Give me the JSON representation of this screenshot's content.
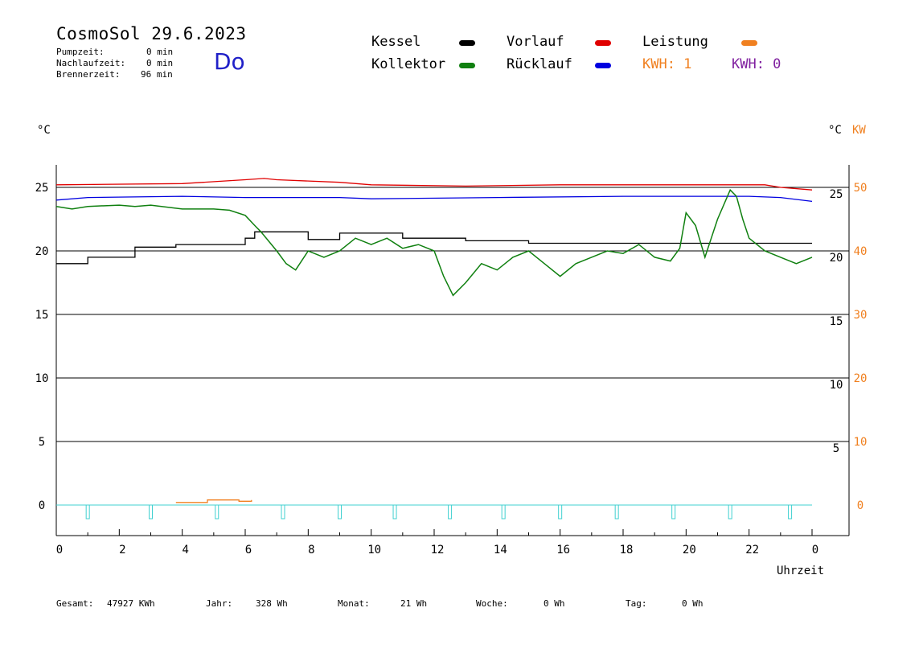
{
  "header": {
    "title": "CosmoSol 29.6.2023",
    "day": "Do",
    "stats": [
      {
        "label": "Pumpzeit:",
        "value": "0 min"
      },
      {
        "label": "Nachlaufzeit:",
        "value": "0 min"
      },
      {
        "label": "Brennerzeit:",
        "value": "96 min"
      }
    ]
  },
  "legend": {
    "kessel": "Kessel",
    "kollektor": "Kollektor",
    "vorlauf": "Vorlauf",
    "ruecklauf": "Rücklauf",
    "leistung": "Leistung",
    "kwh1": "KWH: 1",
    "kwh2": "KWH: 0"
  },
  "colors": {
    "kessel": "#000000",
    "kollektor": "#108010",
    "vorlauf": "#e00000",
    "ruecklauf": "#0000e0",
    "leistung": "#f08020",
    "kwh2": "#8020a0",
    "pump": "#40d0d0"
  },
  "chart_data": {
    "type": "line",
    "xlabel": "Uhrzeit",
    "ylabel_left": "°C",
    "ylabel_right_temp": "°C",
    "ylabel_right_power": "KW",
    "x_ticks": [
      "0",
      "2",
      "4",
      "6",
      "8",
      "10",
      "12",
      "14",
      "16",
      "18",
      "20",
      "22",
      "0"
    ],
    "y_ticks_left": [
      "0",
      "5",
      "10",
      "15",
      "20",
      "25"
    ],
    "y_ticks_right_temp": [
      "5",
      "10",
      "15",
      "20",
      "25"
    ],
    "y_ticks_right_power": [
      "0",
      "10",
      "20",
      "30",
      "40",
      "50"
    ],
    "xlim": [
      0,
      24
    ],
    "ylim": [
      -2,
      27
    ],
    "grid": "horizontal",
    "series": [
      {
        "name": "Vorlauf",
        "x": [
          0,
          4,
          6,
          6.6,
          7,
          9,
          10,
          13,
          16,
          20,
          22.5,
          23,
          24
        ],
        "y": [
          25.2,
          25.3,
          25.6,
          25.7,
          25.6,
          25.4,
          25.2,
          25.1,
          25.2,
          25.2,
          25.2,
          25.0,
          24.8
        ]
      },
      {
        "name": "Rücklauf",
        "x": [
          0,
          1,
          4,
          6,
          9,
          10,
          14,
          18,
          20,
          22,
          23,
          24
        ],
        "y": [
          24.0,
          24.2,
          24.3,
          24.2,
          24.2,
          24.1,
          24.2,
          24.3,
          24.3,
          24.3,
          24.2,
          23.9
        ]
      },
      {
        "name": "Kessel",
        "x": [
          0,
          1,
          2.5,
          3.8,
          5,
          6,
          6.3,
          8,
          9,
          11,
          13,
          15,
          20,
          22,
          24
        ],
        "y": [
          19.0,
          19.5,
          20.3,
          20.5,
          20.5,
          21.0,
          21.5,
          20.9,
          21.4,
          21.0,
          20.8,
          20.6,
          20.6,
          20.6,
          20.6
        ]
      },
      {
        "name": "Kollektor",
        "x": [
          0,
          0.5,
          1,
          2,
          2.5,
          3,
          4,
          5,
          5.5,
          6,
          6.3,
          6.5,
          7,
          7.3,
          7.6,
          8,
          8.5,
          9,
          9.5,
          10,
          10.5,
          11,
          11.5,
          12,
          12.3,
          12.6,
          13,
          13.5,
          14,
          14.5,
          15,
          15.5,
          16,
          16.5,
          17,
          17.5,
          18,
          18.5,
          19,
          19.5,
          19.8,
          20,
          20.3,
          20.6,
          21,
          21.4,
          21.6,
          21.8,
          22,
          22.5,
          23,
          23.5,
          24
        ],
        "y": [
          23.5,
          23.3,
          23.5,
          23.6,
          23.5,
          23.6,
          23.3,
          23.3,
          23.2,
          22.8,
          22.0,
          21.5,
          20.0,
          19.0,
          18.5,
          20.0,
          19.5,
          20.0,
          21.0,
          20.5,
          21.0,
          20.2,
          20.5,
          20.0,
          18.0,
          16.5,
          17.5,
          19.0,
          18.5,
          19.5,
          20.0,
          19.0,
          18.0,
          19.0,
          19.5,
          20.0,
          19.8,
          20.5,
          19.5,
          19.2,
          20.2,
          23.0,
          22.0,
          19.5,
          22.5,
          24.8,
          24.3,
          22.5,
          21.0,
          20.0,
          19.5,
          19.0,
          19.5
        ]
      },
      {
        "name": "Leistung",
        "x": [
          3.8,
          4.6,
          4.8,
          5.6,
          5.8,
          6.2
        ],
        "y": [
          0.2,
          0.2,
          0.4,
          0.4,
          0.3,
          0.4
        ]
      }
    ],
    "pump_markers_x": [
      1.0,
      3.0,
      5.1,
      7.2,
      9.0,
      10.75,
      12.5,
      14.2,
      16.0,
      17.8,
      19.6,
      21.4,
      23.3
    ]
  },
  "axis": {
    "xlabel": "Uhrzeit",
    "unit_left": "°C",
    "unit_right": "°C",
    "unit_power": "KW"
  },
  "footer": [
    {
      "label": "Gesamt:",
      "value": "47927 KWh"
    },
    {
      "label": "Jahr:",
      "value": "328 Wh"
    },
    {
      "label": "Monat:",
      "value": "21 Wh"
    },
    {
      "label": "Woche:",
      "value": "0 Wh"
    },
    {
      "label": "Tag:",
      "value": "0 Wh"
    }
  ]
}
